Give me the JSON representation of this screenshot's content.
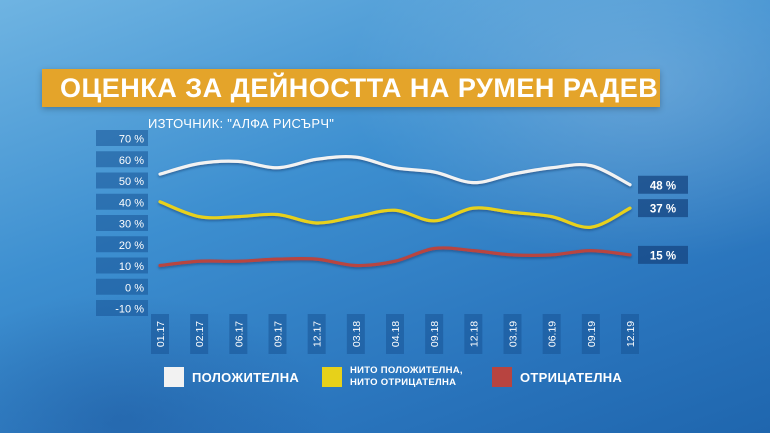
{
  "title": "ОЦЕНКА ЗА ДЕЙНОСТТА НА РУМЕН РАДЕВ",
  "source": "ИЗТОЧНИК: \"АЛФА РИСЪРЧ\"",
  "legend": [
    {
      "label": "ПОЛОЖИТЕЛНА",
      "color": "#f2f2f2"
    },
    {
      "label": "НИТО ПОЛОЖИТЕЛНА, НИТО ОТРИЦАТЕЛНА",
      "color": "#e7d11a"
    },
    {
      "label": "ОТРИЦАТЕЛНА",
      "color": "#b84440"
    }
  ],
  "chart_data": {
    "type": "line",
    "x": [
      "01.17",
      "02.17",
      "06.17",
      "09.17",
      "12.17",
      "03.18",
      "04.18",
      "09.18",
      "12.18",
      "03.19",
      "06.19",
      "09.19",
      "12.19"
    ],
    "y_ticks": [
      "70 %",
      "60 %",
      "50 %",
      "40 %",
      "30 %",
      "20 %",
      "10 %",
      "0 %",
      "-10 %"
    ],
    "ylim": [
      -10,
      70
    ],
    "grid": false,
    "legend_position": "bottom",
    "series": [
      {
        "name": "ПОЛОЖИТЕЛНА",
        "color": "#f2f2f2",
        "values": [
          53,
          58,
          59,
          56,
          60,
          61,
          56,
          54,
          49,
          53,
          56,
          57,
          48
        ],
        "end_label": "48 %"
      },
      {
        "name": "НИТО ПОЛОЖИТЕЛНА, НИТО ОТРИЦАТЕЛНА",
        "color": "#e7d11a",
        "values": [
          40,
          33,
          33,
          34,
          30,
          33,
          36,
          31,
          37,
          35,
          33,
          28,
          37
        ],
        "end_label": "37 %"
      },
      {
        "name": "ОТРИЦАТЕЛНА",
        "color": "#b84440",
        "values": [
          10,
          12,
          12,
          13,
          13,
          10,
          12,
          18,
          17,
          15,
          15,
          17,
          15
        ],
        "end_label": "15 %"
      }
    ]
  }
}
